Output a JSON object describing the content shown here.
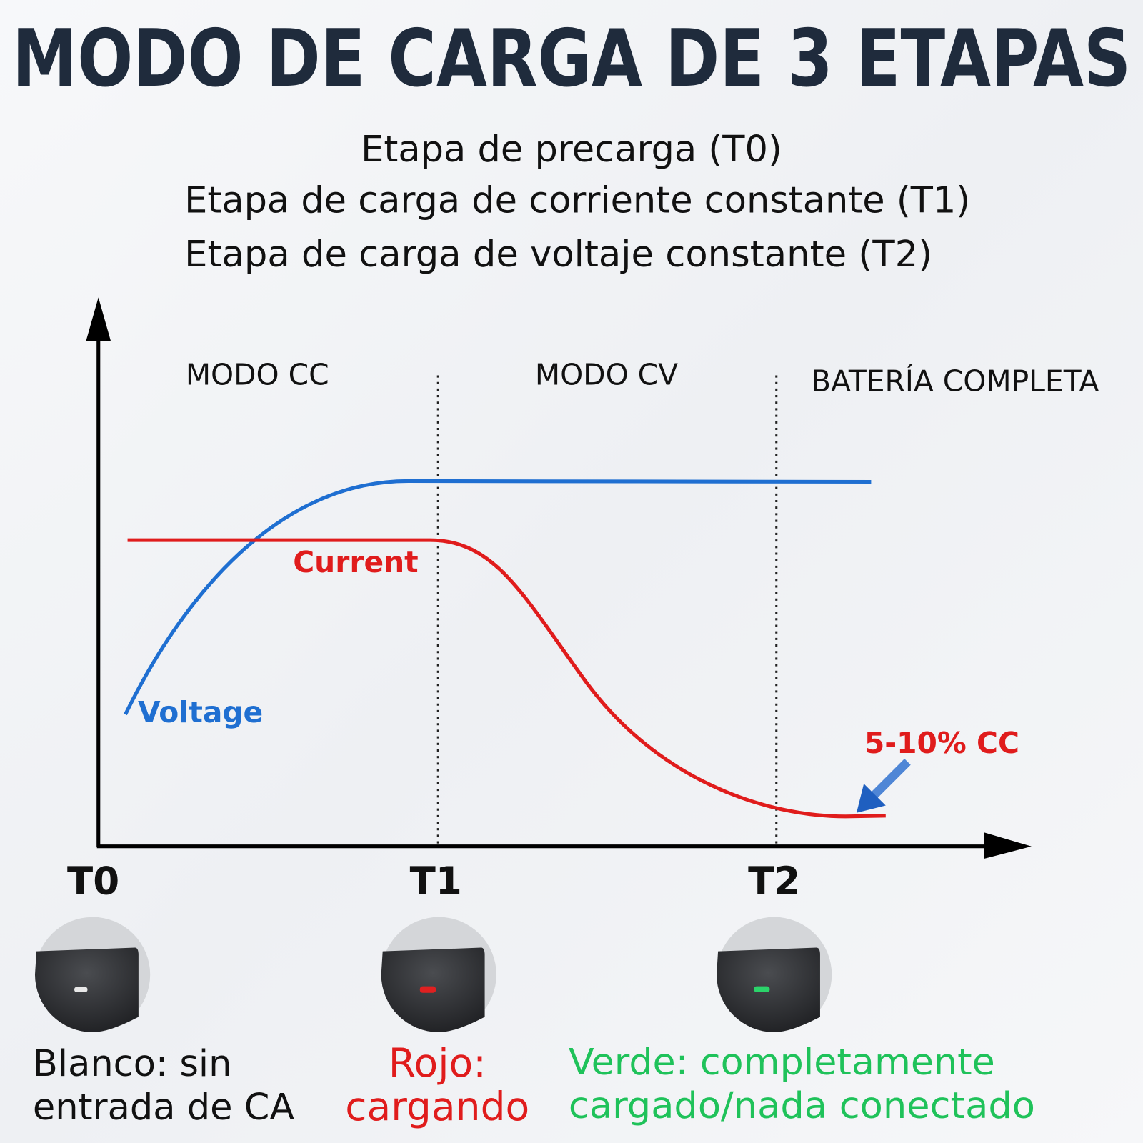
{
  "title": "MODO DE CARGA DE 3 ETAPAS",
  "stages": [
    "Etapa de precarga (T0)",
    "Etapa de carga de corriente constante (T1)",
    "Etapa de carga de voltaje constante (T2)"
  ],
  "modes": [
    "MODO CC",
    "MODO CV",
    "BATERÍA COMPLETA"
  ],
  "curves": {
    "current": "Current",
    "voltage": "Voltage"
  },
  "annotation": "5-10% CC",
  "times": [
    "T0",
    "T1",
    "T2"
  ],
  "indicators": [
    {
      "lines": [
        "Blanco: sin",
        "entrada de CA"
      ]
    },
    {
      "lines": [
        "Rojo:",
        "cargando"
      ]
    },
    {
      "lines": [
        "Verde: completamente",
        "cargado/nada conectado"
      ]
    }
  ]
}
